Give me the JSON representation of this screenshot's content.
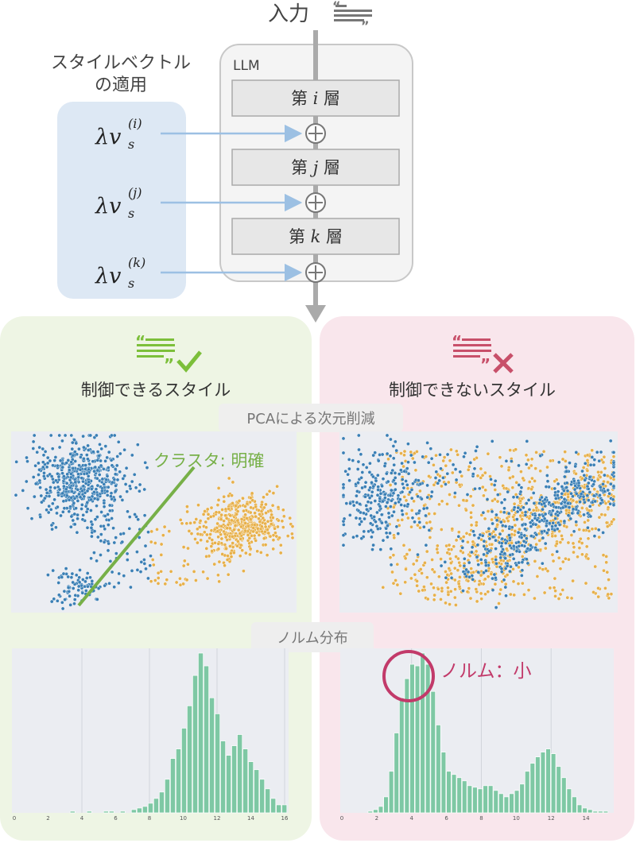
{
  "header": {
    "input_label": "入力",
    "style_vector_title": [
      "スタイルベクトル",
      "の適用"
    ],
    "llm_label": "LLM",
    "layers": [
      {
        "prefix": "第",
        "var": "i",
        "suffix": "層"
      },
      {
        "prefix": "第",
        "var": "j",
        "suffix": "層"
      },
      {
        "prefix": "第",
        "var": "k",
        "suffix": "層"
      }
    ],
    "vectors": [
      {
        "lambda": "λv",
        "sub": "s",
        "sup": "(i)"
      },
      {
        "lambda": "λv",
        "sub": "s",
        "sup": "(j)"
      },
      {
        "lambda": "λv",
        "sub": "s",
        "sup": "(k)"
      }
    ]
  },
  "panels": {
    "controllable": {
      "title": "制御できるスタイル",
      "cluster_note": "クラスタ: 明確"
    },
    "uncontrollable": {
      "title": "制御できないスタイル",
      "norm_note": "ノルム：小"
    },
    "pca_label": "PCAによる次元削減",
    "norm_label": "ノルム分布"
  },
  "colors": {
    "green_panel": "#eef5e4",
    "pink_panel": "#f9e6ec",
    "blue_box": "#dde8f4",
    "scatter_blue": "#3a7fb5",
    "scatter_orange": "#e7b04a",
    "hist_bar": "#7ec8a4",
    "hist_bg": "#ebedf2",
    "check_green": "#7cbf3a",
    "cross_red": "#c8506a"
  },
  "chart_data": [
    {
      "type": "histogram",
      "name": "controllable-norm",
      "x_ticks": [
        0,
        2,
        4,
        6,
        8,
        10,
        12,
        14,
        16
      ],
      "xlim": [
        0,
        16
      ],
      "bin_width": 0.33,
      "bin_start": 0,
      "values": [
        0,
        0,
        0,
        0,
        0,
        0,
        0,
        0,
        0,
        0,
        1,
        0,
        0,
        1,
        0,
        0,
        1,
        1,
        0,
        1,
        0,
        2,
        3,
        4,
        6,
        9,
        13,
        21,
        34,
        40,
        53,
        67,
        86,
        100,
        92,
        72,
        62,
        45,
        36,
        42,
        49,
        40,
        32,
        27,
        21,
        15,
        9,
        5,
        5
      ],
      "grid": true
    },
    {
      "type": "histogram",
      "name": "uncontrollable-norm",
      "x_ticks": [
        0,
        2,
        4,
        6,
        8,
        10,
        12,
        14
      ],
      "xlim": [
        0,
        15.5
      ],
      "bin_width": 0.3,
      "bin_start": 0,
      "values": [
        0,
        0,
        0,
        0,
        0,
        1,
        2,
        4,
        10,
        26,
        50,
        72,
        84,
        93,
        92,
        100,
        93,
        76,
        55,
        38,
        26,
        24,
        22,
        20,
        17,
        16,
        15,
        17,
        17,
        14,
        12,
        10,
        12,
        14,
        18,
        26,
        31,
        35,
        38,
        40,
        37,
        29,
        22,
        15,
        10,
        5,
        3,
        2,
        1,
        1,
        1
      ],
      "grid": true
    }
  ]
}
